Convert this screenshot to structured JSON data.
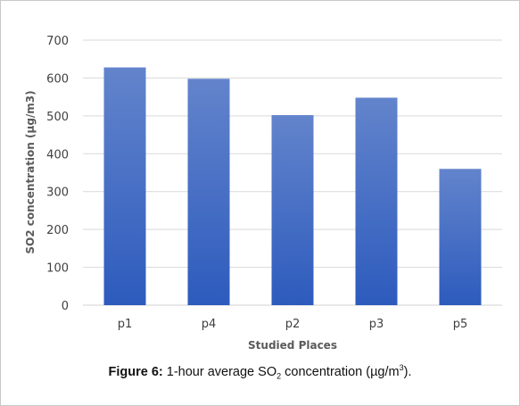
{
  "chart_data": {
    "type": "bar",
    "categories": [
      "p1",
      "p4",
      "p2",
      "p3",
      "p5"
    ],
    "values": [
      628,
      598,
      502,
      548,
      360
    ],
    "title": "",
    "xlabel": "Studied Places",
    "ylabel": "SO2 concentration (µg/m3)",
    "ylim": [
      0,
      700
    ],
    "yticks": [
      0,
      100,
      200,
      300,
      400,
      500,
      600,
      700
    ],
    "grid": true,
    "legend": "none",
    "bar_color_top": "#6384cc",
    "bar_color_bottom": "#2d5bbd"
  },
  "caption": {
    "label": "Figure 6:",
    "text_pre": "1-hour average SO",
    "sub": "2",
    "text_mid": " concentration (µg/m",
    "sup": "3",
    "text_post": ")."
  }
}
